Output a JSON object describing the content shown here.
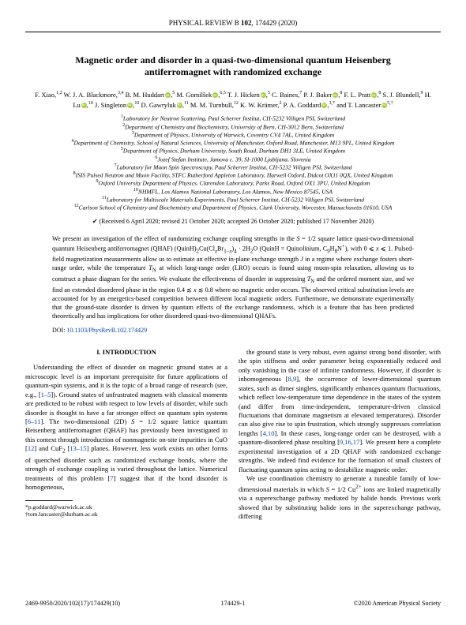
{
  "header": {
    "journal": "PHYSICAL REVIEW B",
    "volume": "102",
    "article": "174429 (2020)"
  },
  "title": "Magnetic order and disorder in a quasi-two-dimensional quantum Heisenberg antiferromagnet with randomized exchange",
  "authors_html": "F. Xiao,<span class='sup'>1,2</span> W. J. A. Blackmore,<span class='sup'>3,4</span> B. M. Huddart<span class='orcid'></span>,<span class='sup'>5</span> M. Gomilšek<span class='orcid'></span>,<span class='sup'>6,5</span> T. J. Hicken<span class='orcid'></span>,<span class='sup'>5</span> C. Baines,<span class='sup'>7</span> P. J. Baker<span class='orcid'></span>,<span class='sup'>8</span> F. L. Pratt<span class='orcid'></span>,<span class='sup'>8</span> S. J. Blundell,<span class='sup'>9</span> H. Lu<span class='orcid'></span>,<span class='sup'>10</span> J. Singleton<span class='orcid'></span>,<span class='sup'>10</span> D. Gawryluk<span class='orcid'></span>,<span class='sup'>11</span> M. M. Turnbull,<span class='sup'>12</span> K. W. Krämer,<span class='sup'>2</span> P. A. Goddard<span class='orcid'></span>,<span class='sup'>3,*</span> and T. Lancaster<span class='orcid'></span><span class='sup'>5,†</span>",
  "affiliations": [
    "Laboratory for Neutron Scattering, Paul Scherrer Institut, CH-5232 Villigen PSI, Switzerland",
    "Department of Chemistry and Biochemistry, University of Bern, CH-3012 Bern, Switzerland",
    "Department of Physics, University of Warwick, Coventry CV4 7AL, United Kingdom",
    "Department of Chemistry, School of Natural Sciences, University of Manchester, Oxford Road, Manchester, M13 9PL, United Kingdom",
    "Department of Physics, Durham University, South Road, Durham DH1 3LE, United Kingdom",
    "Jozef Stefan Institute, Jamova c. 39, SI-1000 Ljubljana, Slovenia",
    "Laboratory for Muon Spin Spectroscopy, Paul Scherrer Institut, CH-5232 Villigen PSI, Switzerland",
    "ISIS Pulsed Neutron and Muon Facility, STFC Rutherford Appleton Laboratory, Harwell Oxford, Didcot OX11 0QX, United Kingdom",
    "Oxford University Department of Physics, Clarendon Laboratory, Parks Road, Oxford OX1 3PU, United Kingdom",
    "NHMFL, Los Alamos National Laboratory, Los Alamos, New Mexico 87545, USA",
    "Laboratory for Multiscale Materials Experiments, Paul Scherrer Institut, CH-5232 Villigen PSI, Switzerland",
    "Carlson School of Chemistry and Biochemistry and Department of Physics, Clark University, Worcester, Massachusetts 01610, USA"
  ],
  "dates": "(Received 6 April 2020; revised 21 October 2020; accepted 26 October 2020; published 17 November 2020)",
  "abstract_html": "We present an investigation of the effect of randomizing exchange coupling strengths in the <span class='italic'>S</span> = 1/2 square lattice quasi-two-dimensional quantum Heisenberg antiferromagnet (QHAF) (QuinH)<sub>2</sub>Cu(Cl<sub><i>x</i></sub>Br<sub>1−<i>x</i></sub>)<sub>4</sub> · 2H<sub>2</sub>O (QuinH = Quinolinium, C<sub>9</sub>H<sub>8</sub>N<sup>+</sup>), with 0 ⩽ <i>x</i> ⩽ 1. Pulsed-field magnetization measurements allow us to estimate an effective in-plane exchange strength <i>J</i> in a regime where exchange fosters short-range order, while the temperature <i>T</i><sub>N</sub> at which long-range order (LRO) occurs is found using muon-spin relaxation, allowing us to construct a phase diagram for the series. We evaluate the effectiveness of disorder in suppressing <i>T</i><sub>N</sub> and the ordered moment size, and we find an extended disordered phase in the region 0.4 ≲ <i>x</i> ≲ 0.8 where no magnetic order occurs. The observed critical substitution levels are accounted for by an energetics-based competition between different local magnetic orders. Furthermore, we demonstrate experimentally that the ground-state disorder is driven by quantum effects of the exchange randomness, which is a feature that has been predicted theoretically and has implications for other disordered quasi-two-dimensional QHAFs.",
  "doi": {
    "label": "DOI:",
    "link": "10.1103/PhysRevB.102.174429"
  },
  "section1": {
    "heading": "I. INTRODUCTION"
  },
  "col1_html": "Understanding the effect of disorder on magnetic ground states at a microscopic level is an important prerequisite for future applications of quantum-spin systems, and it is the topic of a broad range of research (see, e.g., [<span class='ref'>1–5</span>]). Ground states of unfrustrated magnets with classical moments are predicted to be robust with respect to low levels of disorder, while such disorder is thought to have a far stronger effect on quantum spin systems [<span class='ref'>6–11</span>]. The two-dimensional (2D) <i>S</i> = 1/2 square lattice quantum Heisenberg antiferromagnet (QHAF) has previously been investigated in this context through introduction of nonmagnetic on-site impurities in CuO [<span class='ref'>12</span>] and CuF<sub>2</sub> [<span class='ref'>13–15</span>] planes. However, less work exists on other forms of quenched disorder such as randomized exchange bonds, where the strength of exchange coupling is varied throughout the lattice. Numerical treatments of this problem [<span class='ref'>7</span>] suggest that if the bond disorder is homogeneous,",
  "col2_html": "the ground state is very robust, even against strong bond disorder, with the spin stiffness and order parameter being exponentially reduced and only vanishing in the case of infinite randomness. However, if disorder is inhomogeneous [<span class='ref'>8,9</span>], the occurrence of lower-dimensional quantum states, such as dimer singlets, significantly enhances quantum fluctuations, which reflect low-temperature time dependence in the states of the system (and differ from time-independent, temperature-driven classical fluctuations that dominate magnetism at elevated temperatures). Disorder can also give rise to spin frustration, which strongly suppresses correlation lengths [<span class='ref'>4,10</span>]. In these cases, long-range order can be destroyed, with a quantum-disordered phase resulting [<span class='ref'>9,16,17</span>]. We present here a complete experimental investigation of a 2D QHAF with randomized exchange strengths. We indeed find evidence for the formation of small clusters of fluctuating quantum spins acting to destabilize magnetic order.",
  "col2_p2_html": "We use coordination chemistry to generate a tuneable family of low-dimensional materials in which <i>S</i> = 1/2 Cu<sup>2+</sup> ions are linked magnetically via a superexchange pathway mediated by halide bonds. Previous work showed that by substituting halide ions in the superexchange pathway, differing",
  "footnotes": {
    "a": "*p.goddard@warwick.ac.uk",
    "b": "†tom.lancaster@durham.ac.uk"
  },
  "footer": {
    "left": "2469-9950/2020/102(17)/174429(10)",
    "center": "174429-1",
    "right": "©2020 American Physical Society"
  }
}
